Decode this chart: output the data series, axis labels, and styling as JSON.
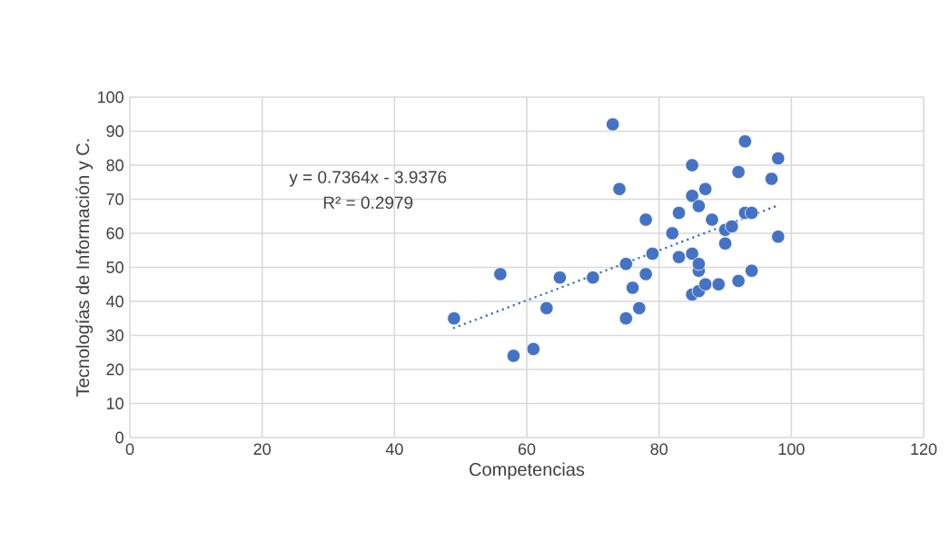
{
  "chart_data": {
    "type": "scatter",
    "xlabel": "Competencias",
    "ylabel": "Tecnologías de Información y C.",
    "xlim": [
      0,
      120
    ],
    "xticks": [
      0,
      20,
      40,
      60,
      80,
      100,
      120
    ],
    "ylim": [
      0,
      100
    ],
    "yticks": [
      0,
      10,
      20,
      30,
      40,
      50,
      60,
      70,
      80,
      90,
      100
    ],
    "grid": true,
    "marker": "circle",
    "annotations": [
      "y = 0.7364x - 3.9376",
      "R² = 0.2979"
    ],
    "series": [
      {
        "color": "#4472c4",
        "x": [
          49,
          56,
          58,
          61,
          63,
          65,
          70,
          73,
          74,
          75,
          75,
          76,
          77,
          78,
          78,
          79,
          82,
          83,
          83,
          85,
          85,
          85,
          85,
          86,
          86,
          86,
          86,
          87,
          87,
          88,
          89,
          90,
          90,
          91,
          92,
          92,
          93,
          93,
          94,
          94,
          97,
          98,
          98
        ],
        "values": [
          35,
          48,
          24,
          26,
          38,
          47,
          47,
          92,
          73,
          35,
          51,
          44,
          38,
          48,
          64,
          54,
          60,
          53,
          66,
          42,
          54,
          71,
          80,
          43,
          49,
          51,
          68,
          45,
          73,
          64,
          45,
          57,
          61,
          62,
          46,
          78,
          66,
          87,
          49,
          66,
          76,
          59,
          82
        ]
      },
      {
        "type": "line",
        "color": "#4472c4",
        "line_style": "dotted",
        "marker": "none",
        "x": [
          49,
          98
        ],
        "values": [
          32.2,
          68.2
        ]
      }
    ]
  }
}
